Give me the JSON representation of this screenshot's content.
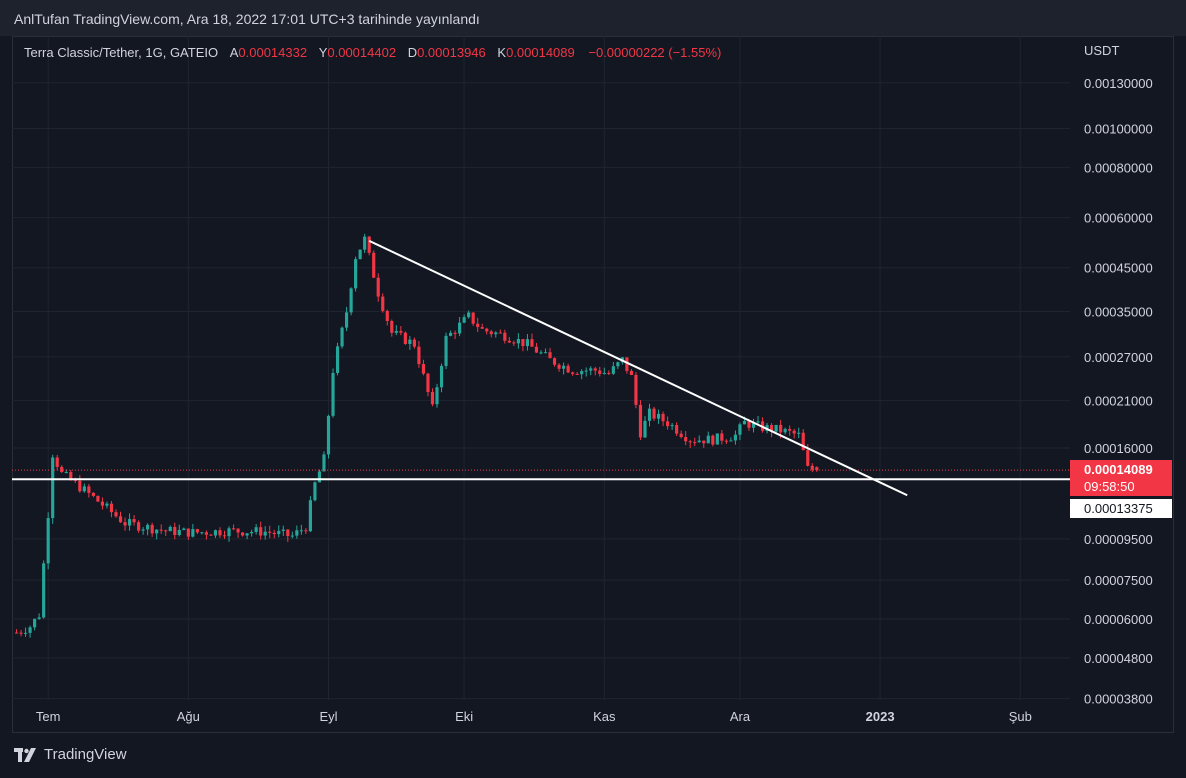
{
  "header": {
    "published": "AnlTufan TradingView.com, Ara 18, 2022 17:01 UTC+3 tarihinde yayınlandı"
  },
  "legend": {
    "symbol": "Terra Classic/Tether, 1G, GATEIO",
    "open_label": "A",
    "open": "0.00014332",
    "high_label": "Y",
    "high": "0.00014402",
    "low_label": "D",
    "low": "0.00013946",
    "close_label": "K",
    "close": "0.00014089",
    "change": "−0.00000222 (−1.55%)"
  },
  "price_axis": {
    "currency": "USDT",
    "last_price": "0.00014089",
    "countdown": "09:58:50",
    "level_price": "0.00013375"
  },
  "footer": {
    "brand": "TradingView"
  },
  "colors": {
    "up": "#26a69a",
    "down": "#f23645",
    "background": "#131722",
    "grid": "#1f2430",
    "trendline": "#ffffff"
  },
  "chart_data": {
    "type": "candlestick",
    "x_ticks": [
      "Tem",
      "Ağu",
      "Eyl",
      "Eki",
      "Kas",
      "Ara",
      "2023",
      "Şub"
    ],
    "y_scale": "log",
    "y_ticks": [
      "0.00130000",
      "0.00100000",
      "0.00080000",
      "0.00060000",
      "0.00045000",
      "0.00035000",
      "0.00027000",
      "0.00021000",
      "0.00016000",
      "0.00009500",
      "0.00007500",
      "0.00006000",
      "0.00004800",
      "0.00003800"
    ],
    "ylim": [
      3.77e-05,
      0.0017
    ],
    "xlim": [
      "2022-06-23",
      "2023-02-12"
    ],
    "grid": true,
    "price_series": [
      [
        "2022-06-24",
        5.55e-05
      ],
      [
        "2022-06-27",
        5.75e-05
      ],
      [
        "2022-06-29",
        6.15e-05
      ],
      [
        "2022-07-01",
        0.00011
      ],
      [
        "2022-07-02",
        0.000155
      ],
      [
        "2022-07-04",
        0.000138
      ],
      [
        "2022-07-08",
        0.000128
      ],
      [
        "2022-07-12",
        0.000118
      ],
      [
        "2022-07-18",
        0.000104
      ],
      [
        "2022-07-22",
        0.000102
      ],
      [
        "2022-07-27",
        9.95e-05
      ],
      [
        "2022-08-02",
        9.85e-05
      ],
      [
        "2022-08-10",
        9.95e-05
      ],
      [
        "2022-08-18",
        9.9e-05
      ],
      [
        "2022-08-24",
        9.65e-05
      ],
      [
        "2022-08-27",
        0.000102
      ],
      [
        "2022-08-29",
        0.00013
      ],
      [
        "2022-08-31",
        0.00015
      ],
      [
        "2022-09-02",
        0.00025
      ],
      [
        "2022-09-05",
        0.00035
      ],
      [
        "2022-09-07",
        0.00048
      ],
      [
        "2022-09-09",
        0.00053
      ],
      [
        "2022-09-12",
        0.00039
      ],
      [
        "2022-09-15",
        0.00031
      ],
      [
        "2022-09-20",
        0.00029
      ],
      [
        "2022-09-24",
        0.0002
      ],
      [
        "2022-09-27",
        0.0003
      ],
      [
        "2022-10-02",
        0.00034
      ],
      [
        "2022-10-05",
        0.000315
      ],
      [
        "2022-10-10",
        0.000305
      ],
      [
        "2022-10-15",
        0.00029
      ],
      [
        "2022-10-20",
        0.000265
      ],
      [
        "2022-10-25",
        0.00025
      ],
      [
        "2022-10-30",
        0.00025
      ],
      [
        "2022-11-02",
        0.000245
      ],
      [
        "2022-11-05",
        0.000265
      ],
      [
        "2022-11-07",
        0.00024
      ],
      [
        "2022-11-09",
        0.000175
      ],
      [
        "2022-11-11",
        0.000195
      ],
      [
        "2022-11-15",
        0.000185
      ],
      [
        "2022-11-20",
        0.000168
      ],
      [
        "2022-11-25",
        0.000168
      ],
      [
        "2022-11-30",
        0.000172
      ],
      [
        "2022-12-02",
        0.000185
      ],
      [
        "2022-12-06",
        0.00018
      ],
      [
        "2022-12-10",
        0.000177
      ],
      [
        "2022-12-14",
        0.000172
      ],
      [
        "2022-12-16",
        0.000142
      ],
      [
        "2022-12-18",
        0.00014089
      ]
    ],
    "annotations": {
      "support_line": 0.00013375,
      "trendline": [
        [
          "2022-09-10",
          0.000525
        ],
        [
          "2023-01-07",
          0.000122
        ]
      ]
    }
  }
}
